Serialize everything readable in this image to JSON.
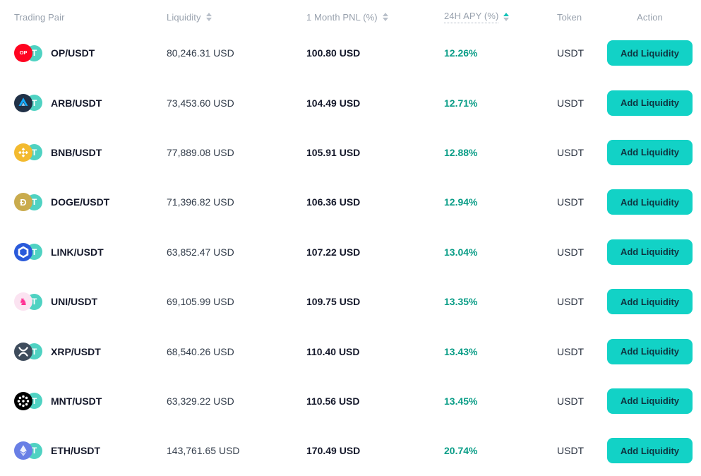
{
  "columns": [
    {
      "label": "Trading Pair",
      "sortable": false
    },
    {
      "label": "Liquidity",
      "sortable": true
    },
    {
      "label": "1 Month PNL (%)",
      "sortable": true
    },
    {
      "label": "24H APY (%)",
      "sortable": true,
      "sorted": "asc",
      "underlined": true
    },
    {
      "label": "Token",
      "sortable": false
    },
    {
      "label": "Action",
      "sortable": false
    }
  ],
  "action_label": "Add Liquidity",
  "colors": {
    "accent": "#12d2c6",
    "apy_text": "#0a9d87",
    "sort_active": "#12c2b8",
    "header_text": "#99a2ae"
  },
  "icons": {
    "op": {
      "name": "op-coin-icon",
      "type": "text",
      "bg": "#ff0420",
      "fg": "#ffffff",
      "glyph": "OP",
      "font": "7.5px",
      "weight": 700
    },
    "arb": {
      "name": "arb-coin-icon",
      "type": "svg",
      "shape": "arb"
    },
    "bnb": {
      "name": "bnb-coin-icon",
      "type": "svg",
      "shape": "bnb"
    },
    "doge": {
      "name": "doge-coin-icon",
      "type": "text",
      "bg": "#c9ab4d",
      "fg": "#ffffff",
      "glyph": "Ð",
      "font": "13px",
      "weight": 700
    },
    "link": {
      "name": "link-coin-icon",
      "type": "svg",
      "shape": "link"
    },
    "uni": {
      "name": "uni-coin-icon",
      "type": "text",
      "bg": "#fbe3f1",
      "fg": "#ff2e92",
      "glyph": "♞",
      "font": "14px",
      "weight": 400
    },
    "xrp": {
      "name": "xrp-coin-icon",
      "type": "svg",
      "shape": "xrp"
    },
    "mnt": {
      "name": "mnt-coin-icon",
      "type": "svg",
      "shape": "mnt"
    },
    "eth": {
      "name": "eth-coin-icon",
      "type": "svg",
      "shape": "eth"
    },
    "usdt": {
      "name": "usdt-coin-icon",
      "type": "text",
      "bg": "#4fd2c2",
      "fg": "#ffffff",
      "glyph": "T",
      "font": "12px",
      "weight": 700
    }
  },
  "rows": [
    {
      "pair": "OP/USDT",
      "icon": "op",
      "quote_icon": "usdt",
      "liquidity": "80,246.31 USD",
      "pnl": "100.80 USD",
      "apy": "12.26%",
      "token": "USDT"
    },
    {
      "pair": "ARB/USDT",
      "icon": "arb",
      "quote_icon": "usdt",
      "liquidity": "73,453.60 USD",
      "pnl": "104.49 USD",
      "apy": "12.71%",
      "token": "USDT"
    },
    {
      "pair": "BNB/USDT",
      "icon": "bnb",
      "quote_icon": "usdt",
      "liquidity": "77,889.08 USD",
      "pnl": "105.91 USD",
      "apy": "12.88%",
      "token": "USDT"
    },
    {
      "pair": "DOGE/USDT",
      "icon": "doge",
      "quote_icon": "usdt",
      "liquidity": "71,396.82 USD",
      "pnl": "106.36 USD",
      "apy": "12.94%",
      "token": "USDT"
    },
    {
      "pair": "LINK/USDT",
      "icon": "link",
      "quote_icon": "usdt",
      "liquidity": "63,852.47 USD",
      "pnl": "107.22 USD",
      "apy": "13.04%",
      "token": "USDT"
    },
    {
      "pair": "UNI/USDT",
      "icon": "uni",
      "quote_icon": "usdt",
      "liquidity": "69,105.99 USD",
      "pnl": "109.75 USD",
      "apy": "13.35%",
      "token": "USDT"
    },
    {
      "pair": "XRP/USDT",
      "icon": "xrp",
      "quote_icon": "usdt",
      "liquidity": "68,540.26 USD",
      "pnl": "110.40 USD",
      "apy": "13.43%",
      "token": "USDT"
    },
    {
      "pair": "MNT/USDT",
      "icon": "mnt",
      "quote_icon": "usdt",
      "liquidity": "63,329.22 USD",
      "pnl": "110.56 USD",
      "apy": "13.45%",
      "token": "USDT"
    },
    {
      "pair": "ETH/USDT",
      "icon": "eth",
      "quote_icon": "usdt",
      "liquidity": "143,761.65 USD",
      "pnl": "170.49 USD",
      "apy": "20.74%",
      "token": "USDT"
    }
  ]
}
